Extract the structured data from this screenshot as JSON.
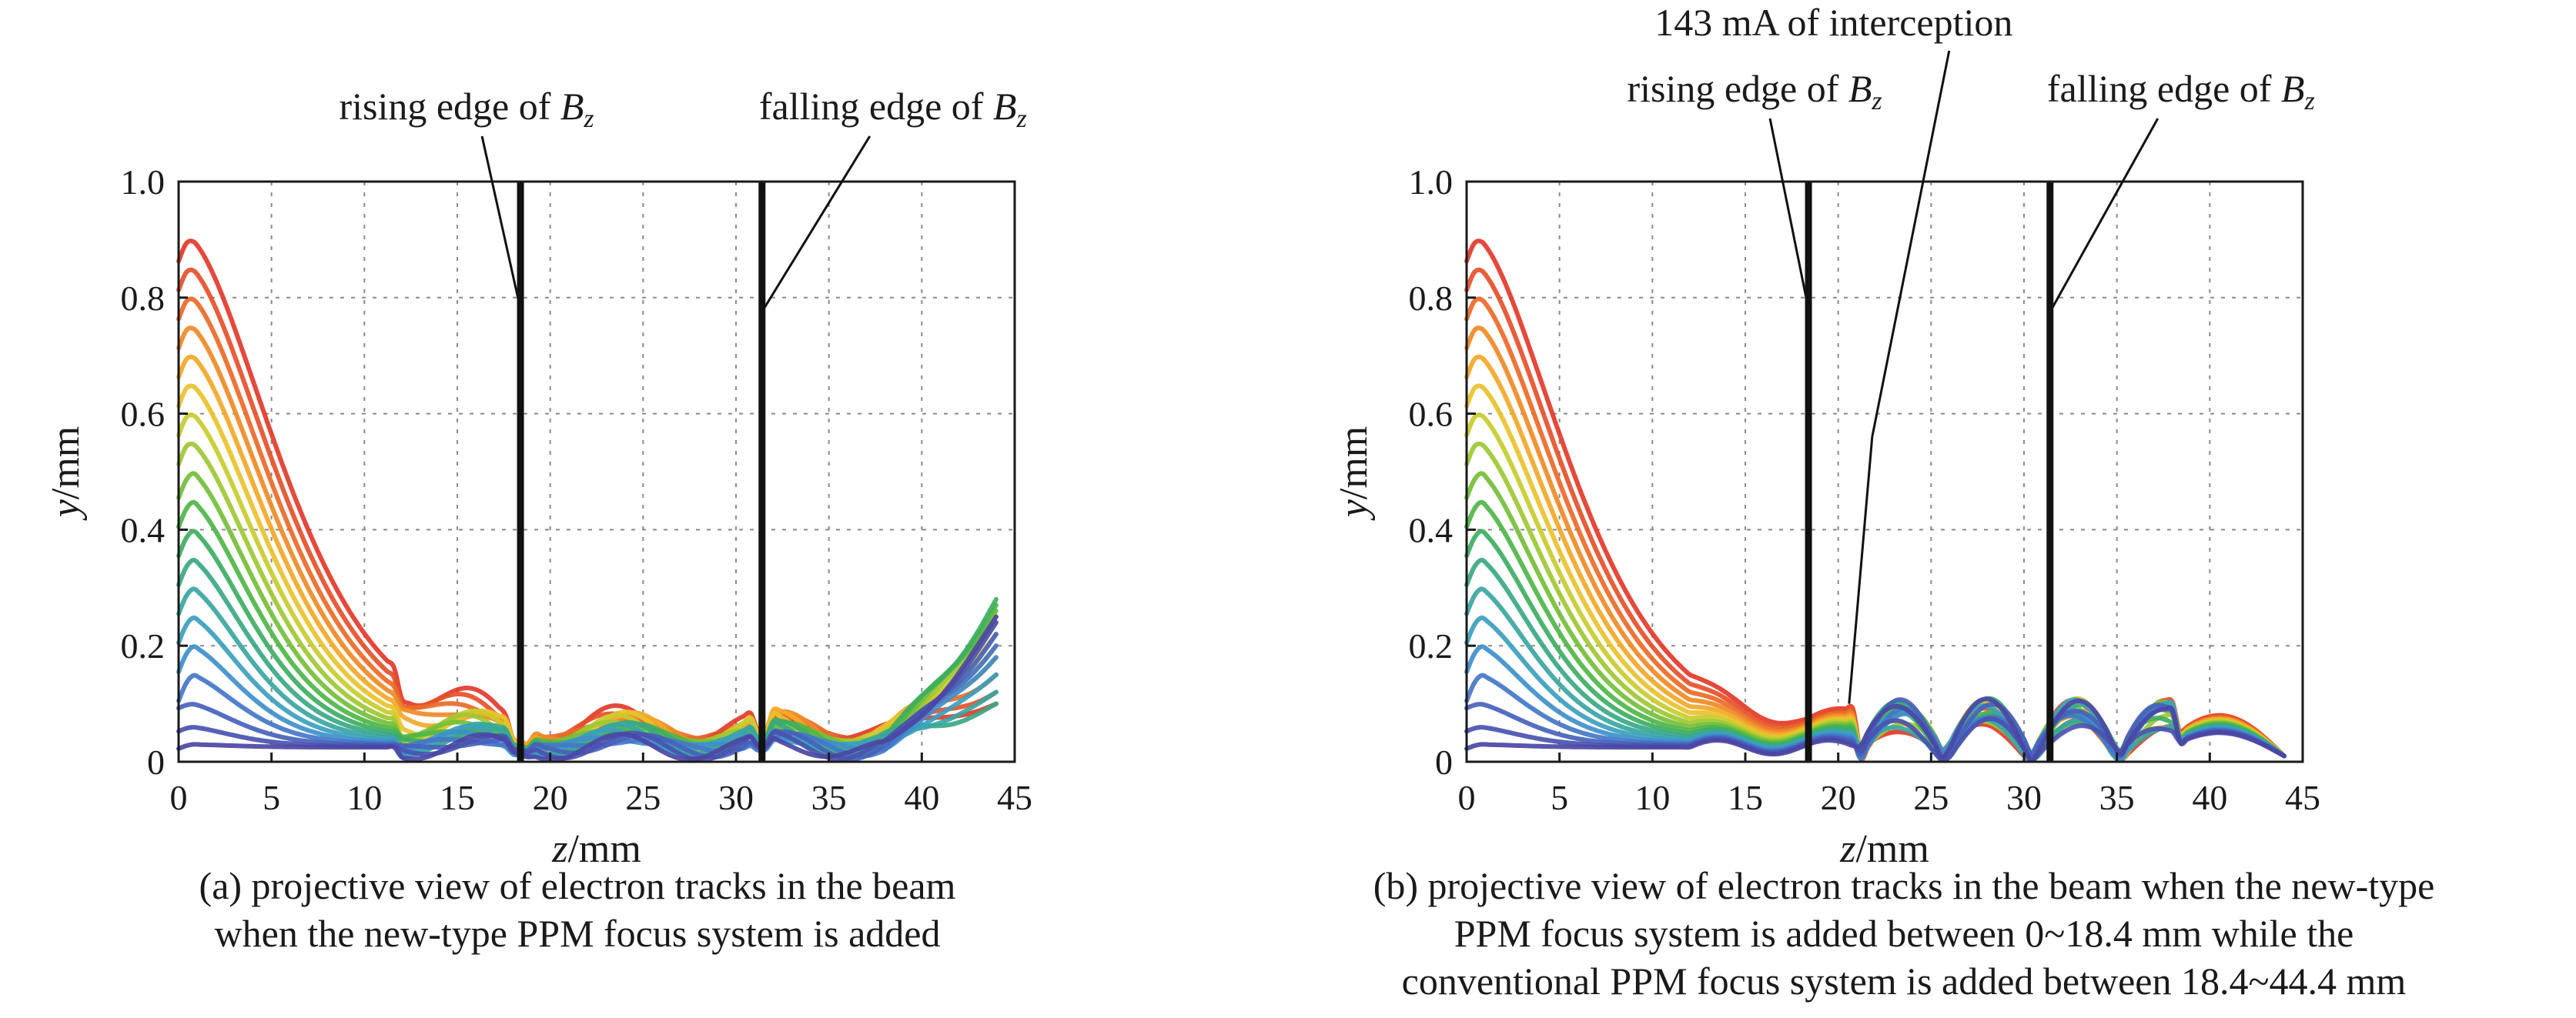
{
  "chart_data": [
    {
      "type": "line",
      "panel": "a",
      "caption_lines": [
        "(a) projective view of electron tracks in the beam",
        "when the new-type  PPM focus system is added"
      ],
      "xlabel_var": "z",
      "xlabel_unit": "/mm",
      "ylabel_var": "y",
      "ylabel_unit": "/mm",
      "xlim": [
        0,
        45
      ],
      "ylim": [
        0,
        1.0
      ],
      "xticks": [
        "0",
        "5",
        "10",
        "15",
        "20",
        "25",
        "30",
        "35",
        "40",
        "45"
      ],
      "yticks": [
        "0",
        "0.2",
        "0.4",
        "0.6",
        "0.8",
        "1.0"
      ],
      "grid": true,
      "vlines": [
        {
          "x": 18.4,
          "label_text": "rising edge of ",
          "label_var": "B",
          "label_sub": "z"
        },
        {
          "x": 31.4,
          "label_text": "falling edge of ",
          "label_var": "B",
          "label_sub": "z"
        }
      ],
      "series_start_y": [
        0.9,
        0.85,
        0.8,
        0.75,
        0.7,
        0.65,
        0.6,
        0.55,
        0.5,
        0.45,
        0.4,
        0.35,
        0.3,
        0.25,
        0.2,
        0.15,
        0.1,
        0.06,
        0.03
      ],
      "tail_values": [
        0.1,
        0.12,
        0.15,
        0.18,
        0.2,
        0.22,
        0.24,
        0.25,
        0.26,
        0.27,
        0.28
      ],
      "colors": [
        "#e23a2a",
        "#e5502a",
        "#ea6a28",
        "#ef8a26",
        "#f1a828",
        "#e9c22c",
        "#c8cc2e",
        "#9ec834",
        "#74bf3a",
        "#4fb646",
        "#3eae62",
        "#3aa884",
        "#3aa6a2",
        "#3c9fbe",
        "#3f8fcc",
        "#4477c8",
        "#4662bc",
        "#4a52b0",
        "#4c46a4"
      ]
    },
    {
      "type": "line",
      "panel": "b",
      "caption_lines": [
        "(b) projective view of electron tracks in the beam when the new-type",
        "PPM focus system is added between 0~18.4 mm while the",
        "conventional PPM focus system is added between 18.4~44.4 mm"
      ],
      "xlabel_var": "z",
      "xlabel_unit": "/mm",
      "ylabel_var": "y",
      "ylabel_unit": "/mm",
      "xlim": [
        0,
        45
      ],
      "ylim": [
        0,
        1.0
      ],
      "xticks": [
        "0",
        "5",
        "10",
        "15",
        "20",
        "25",
        "30",
        "35",
        "40",
        "45"
      ],
      "yticks": [
        "0",
        "0.2",
        "0.4",
        "0.6",
        "0.8",
        "1.0"
      ],
      "grid": true,
      "vlines": [
        {
          "x": 18.4,
          "label_text": "rising edge of ",
          "label_var": "B",
          "label_sub": "z"
        },
        {
          "x": 31.4,
          "label_text": "falling edge of ",
          "label_var": "B",
          "label_sub": "z"
        }
      ],
      "interception_label": "143 mA of interception",
      "interception_x": 21.0,
      "series_start_y": [
        0.9,
        0.85,
        0.8,
        0.75,
        0.7,
        0.65,
        0.6,
        0.55,
        0.5,
        0.45,
        0.4,
        0.35,
        0.3,
        0.25,
        0.2,
        0.15,
        0.1,
        0.06,
        0.03
      ],
      "colors": [
        "#e23a2a",
        "#e5502a",
        "#ea6a28",
        "#ef8a26",
        "#f1a828",
        "#e9c22c",
        "#c8cc2e",
        "#9ec834",
        "#74bf3a",
        "#4fb646",
        "#3eae62",
        "#3aa884",
        "#3aa6a2",
        "#3c9fbe",
        "#3f8fcc",
        "#4477c8",
        "#4662bc",
        "#4a52b0",
        "#4c46a4"
      ]
    }
  ]
}
